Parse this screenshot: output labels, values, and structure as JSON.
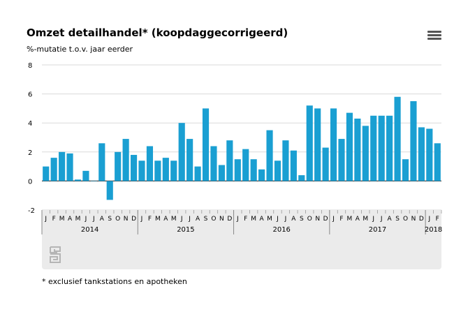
{
  "header": {
    "title": "Omzet detailhandel* (koopdaggecorrigeerd)",
    "subtitle": "%-mutatie t.o.v. jaar eerder",
    "menu_icon": "hamburger-menu-icon"
  },
  "footnote": "* exclusief tankstations en apotheken",
  "logo": "cbs-logo",
  "colors": {
    "bar": "#1a9fd2",
    "axis_band": "#ebebeb",
    "grid": "#d9d9d9"
  },
  "chart_data": {
    "type": "bar",
    "title": "Omzet detailhandel* (koopdaggecorrigeerd)",
    "ylabel": "%-mutatie t.o.v. jaar eerder",
    "ylim": [
      -2,
      8
    ],
    "yticks": [
      -2,
      0,
      2,
      4,
      6,
      8
    ],
    "grid": true,
    "categories": [
      "J",
      "F",
      "M",
      "A",
      "M",
      "J",
      "J",
      "A",
      "S",
      "O",
      "N",
      "D",
      "J",
      "F",
      "M",
      "A",
      "M",
      "J",
      "J",
      "A",
      "S",
      "O",
      "N",
      "D",
      "J",
      "F",
      "M",
      "A",
      "M",
      "J",
      "J",
      "A",
      "S",
      "O",
      "N",
      "D",
      "J",
      "F",
      "M",
      "A",
      "M",
      "J",
      "J",
      "A",
      "S",
      "O",
      "N",
      "D",
      "J",
      "F"
    ],
    "years": [
      {
        "label": "2014",
        "months": 12
      },
      {
        "label": "2015",
        "months": 12
      },
      {
        "label": "2016",
        "months": 12
      },
      {
        "label": "2017",
        "months": 12
      },
      {
        "label": "2018",
        "months": 2
      }
    ],
    "values": [
      1.0,
      1.6,
      2.0,
      1.9,
      0.1,
      0.7,
      0.0,
      2.6,
      -1.3,
      2.0,
      2.9,
      1.8,
      1.4,
      2.4,
      1.4,
      1.6,
      1.4,
      4.0,
      2.9,
      1.0,
      5.0,
      2.4,
      1.1,
      2.8,
      1.5,
      2.2,
      1.5,
      0.8,
      3.5,
      1.4,
      2.8,
      2.1,
      0.4,
      5.2,
      5.0,
      2.3,
      5.0,
      2.9,
      4.7,
      4.3,
      3.8,
      4.5,
      4.5,
      4.5,
      5.8,
      1.5,
      5.5,
      3.7,
      3.6,
      2.6
    ]
  }
}
